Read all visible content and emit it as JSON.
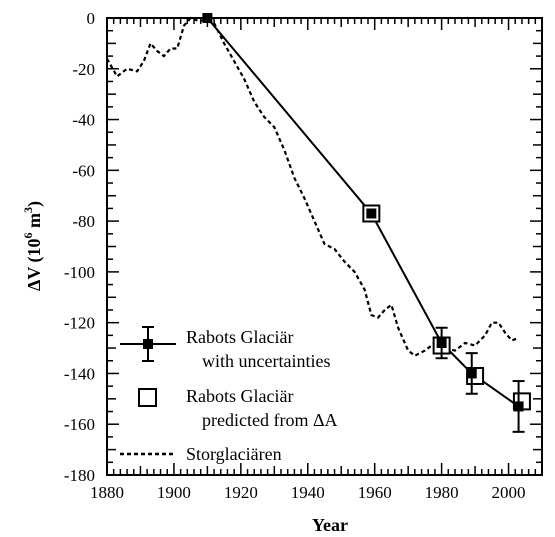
{
  "chart_data": {
    "type": "line",
    "xlabel": "Year",
    "ylabel_main": "ΔV (10",
    "ylabel_sup1": "6",
    "ylabel_mid": " m",
    "ylabel_sup2": "3",
    "ylabel_end": ")",
    "xlim": [
      1880,
      2010
    ],
    "ylim": [
      -180,
      0
    ],
    "xticks": [
      1880,
      1900,
      1920,
      1940,
      1960,
      1980,
      2000
    ],
    "yticks": [
      0,
      -20,
      -40,
      -60,
      -80,
      -100,
      -120,
      -140,
      -160,
      -180
    ],
    "grid": false,
    "legend_position": "bottom-left",
    "series": [
      {
        "name": "Rabots Glaciär",
        "name_line2": "with uncertainties",
        "style": "solid-filled-square",
        "x": [
          1910,
          1959,
          1980,
          1989,
          2003
        ],
        "y": [
          0,
          -77,
          -128,
          -140,
          -153
        ],
        "err": [
          0,
          0,
          6,
          8,
          10
        ]
      },
      {
        "name": "Rabots Glaciär",
        "name_line2": "predicted from ΔA",
        "style": "open-square",
        "x": [
          1959,
          1980,
          1990,
          2004
        ],
        "y": [
          -77,
          -129,
          -141,
          -151
        ],
        "err": [
          0,
          0,
          0,
          0
        ]
      },
      {
        "name": "Storglaciären",
        "style": "dotted",
        "x": [
          1880,
          1883,
          1886,
          1889,
          1891,
          1893,
          1895,
          1897,
          1899,
          1901,
          1903,
          1905,
          1907,
          1909,
          1912,
          1915,
          1918,
          1921,
          1924,
          1927,
          1930,
          1933,
          1936,
          1939,
          1942,
          1945,
          1948,
          1951,
          1954,
          1957,
          1959,
          1961,
          1963,
          1965,
          1967,
          1970,
          1972,
          1975,
          1978,
          1981,
          1984,
          1987,
          1990,
          1993,
          1995,
          1997,
          1999,
          2001,
          2003
        ],
        "y": [
          -16,
          -23,
          -20,
          -21,
          -17,
          -10,
          -13,
          -15,
          -12,
          -12,
          -3,
          0,
          -1,
          -1,
          -2,
          -10,
          -17,
          -24,
          -33,
          -39,
          -43,
          -52,
          -63,
          -71,
          -80,
          -89,
          -91,
          -96,
          -100,
          -107,
          -117,
          -118,
          -115,
          -113,
          -122,
          -131,
          -133,
          -131,
          -128,
          -130,
          -131,
          -128,
          -129,
          -125,
          -120,
          -120,
          -124,
          -127,
          -126
        ]
      }
    ]
  }
}
